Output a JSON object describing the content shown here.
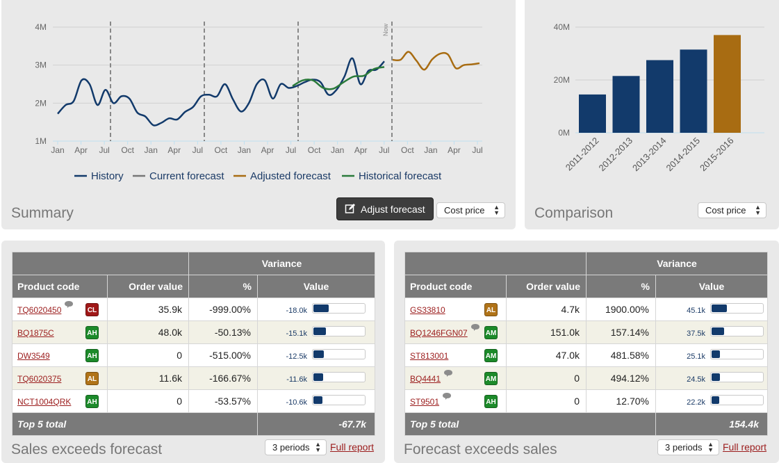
{
  "summary": {
    "title": "Summary",
    "adjust_button": "Adjust forecast",
    "price_select": "Cost price",
    "chart": {
      "y_ticks": [
        "4M",
        "3M",
        "2M",
        "1M"
      ],
      "x_ticks": [
        "Jan",
        "Apr",
        "Jul",
        "Oct",
        "Jan",
        "Apr",
        "Jul",
        "Oct",
        "Jan",
        "Apr",
        "Jul",
        "Oct",
        "Jan",
        "Apr",
        "Jul",
        "Oct",
        "Jan",
        "Apr",
        "Jul"
      ],
      "now_label": "Now",
      "legend": [
        "History",
        "Current forecast",
        "Adjusted forecast",
        "Historical forecast"
      ]
    }
  },
  "comparison": {
    "title": "Comparison",
    "price_select": "Cost price"
  },
  "sales_table": {
    "title": "Sales exceeds forecast",
    "period_select": "3 periods",
    "full_report": "Full report",
    "variance_header": "Variance",
    "headers": [
      "Product code",
      "Order value",
      "%",
      "Value"
    ],
    "rows": [
      {
        "code": "TQ6020450",
        "badge": "CL",
        "badge_color": "#a01818",
        "comment": true,
        "order": "35.9k",
        "pct": "-999.00%",
        "value": "-18.0k",
        "fill": 0.29
      },
      {
        "code": "BQ1875C",
        "badge": "AH",
        "badge_color": "#1c8a2a",
        "comment": false,
        "order": "48.0k",
        "pct": "-50.13%",
        "value": "-15.1k",
        "fill": 0.24
      },
      {
        "code": "DW3549",
        "badge": "AH",
        "badge_color": "#1c8a2a",
        "comment": false,
        "order": "0",
        "pct": "-515.00%",
        "value": "-12.5k",
        "fill": 0.2
      },
      {
        "code": "TQ6020375",
        "badge": "AL",
        "badge_color": "#b07318",
        "comment": false,
        "order": "11.6k",
        "pct": "-166.67%",
        "value": "-11.6k",
        "fill": 0.18
      },
      {
        "code": "NCT1004QRK",
        "badge": "AH",
        "badge_color": "#1c8a2a",
        "comment": false,
        "order": "0",
        "pct": "-53.57%",
        "value": "-10.6k",
        "fill": 0.17
      }
    ],
    "total_label": "Top 5 total",
    "total_value": "-67.7k"
  },
  "forecast_table": {
    "title": "Forecast exceeds sales",
    "period_select": "3 periods",
    "full_report": "Full report",
    "variance_header": "Variance",
    "headers": [
      "Product code",
      "Order value",
      "%",
      "Value"
    ],
    "rows": [
      {
        "code": "GS33810",
        "badge": "AL",
        "badge_color": "#b07318",
        "comment": false,
        "order": "4.7k",
        "pct": "1900.00%",
        "value": "45.1k",
        "fill": 0.29
      },
      {
        "code": "BQ1246FGN07",
        "badge": "AM",
        "badge_color": "#1c8a2a",
        "comment": true,
        "order": "151.0k",
        "pct": "157.14%",
        "value": "37.5k",
        "fill": 0.24
      },
      {
        "code": "ST813001",
        "badge": "AM",
        "badge_color": "#1c8a2a",
        "comment": false,
        "order": "47.0k",
        "pct": "481.58%",
        "value": "25.1k",
        "fill": 0.16
      },
      {
        "code": "BQ4441",
        "badge": "AM",
        "badge_color": "#1c8a2a",
        "comment": true,
        "order": "0",
        "pct": "494.12%",
        "value": "24.5k",
        "fill": 0.16
      },
      {
        "code": "ST9501",
        "badge": "AH",
        "badge_color": "#1c8a2a",
        "comment": true,
        "order": "0",
        "pct": "12.70%",
        "value": "22.2k",
        "fill": 0.14
      }
    ],
    "total_label": "Top 5 total",
    "total_value": "154.4k"
  },
  "chart_data": [
    {
      "type": "line",
      "ylim": [
        1000000,
        4000000
      ],
      "y_ticks": [
        "1M",
        "2M",
        "3M",
        "4M"
      ],
      "x_ticks": [
        "Jan",
        "Apr",
        "Jul",
        "Oct",
        "Jan",
        "Apr",
        "Jul",
        "Oct",
        "Jan",
        "Apr",
        "Jul",
        "Oct",
        "Jan",
        "Apr",
        "Jul",
        "Oct",
        "Jan",
        "Apr",
        "Jul"
      ],
      "series": [
        {
          "name": "History",
          "color": "#123a6b",
          "values": [
            1.72,
            1.95,
            2.05,
            2.6,
            2.5,
            1.95,
            2.35,
            2.0,
            2.18,
            2.12,
            1.75,
            1.65,
            1.42,
            1.48,
            1.6,
            1.57,
            1.77,
            1.9,
            2.18,
            2.22,
            2.18,
            2.5,
            2.1,
            1.78,
            2.0,
            2.5,
            2.6,
            2.12,
            2.5,
            2.4,
            2.45,
            2.55,
            2.62,
            2.55,
            2.22,
            2.35,
            2.7,
            3.18,
            2.5,
            2.85,
            2.88,
            3.1
          ]
        },
        {
          "name": "Adjusted forecast",
          "color": "#a86c12",
          "values": [
            3.14,
            3.14,
            3.35,
            3.12,
            2.88,
            3.15,
            3.3,
            3.28,
            2.92,
            3.0,
            3.02,
            3.05
          ]
        },
        {
          "name": "Historical forecast",
          "color": "#2a7a3a",
          "values": [
            2.45,
            2.6,
            2.6,
            2.4,
            2.38,
            2.55,
            2.7,
            2.72,
            2.9,
            2.95
          ]
        }
      ]
    },
    {
      "type": "bar",
      "categories": [
        "2011-2012",
        "2012-2013",
        "2013-2014",
        "2014-2015",
        "2015-2016"
      ],
      "values": [
        14.5,
        21.5,
        27.5,
        31.5,
        37.0
      ],
      "y_ticks": [
        "0M",
        "20M",
        "40M"
      ],
      "ylim": [
        0,
        40
      ],
      "colors": [
        "#123a6b",
        "#123a6b",
        "#123a6b",
        "#123a6b",
        "#a86c12"
      ]
    }
  ]
}
